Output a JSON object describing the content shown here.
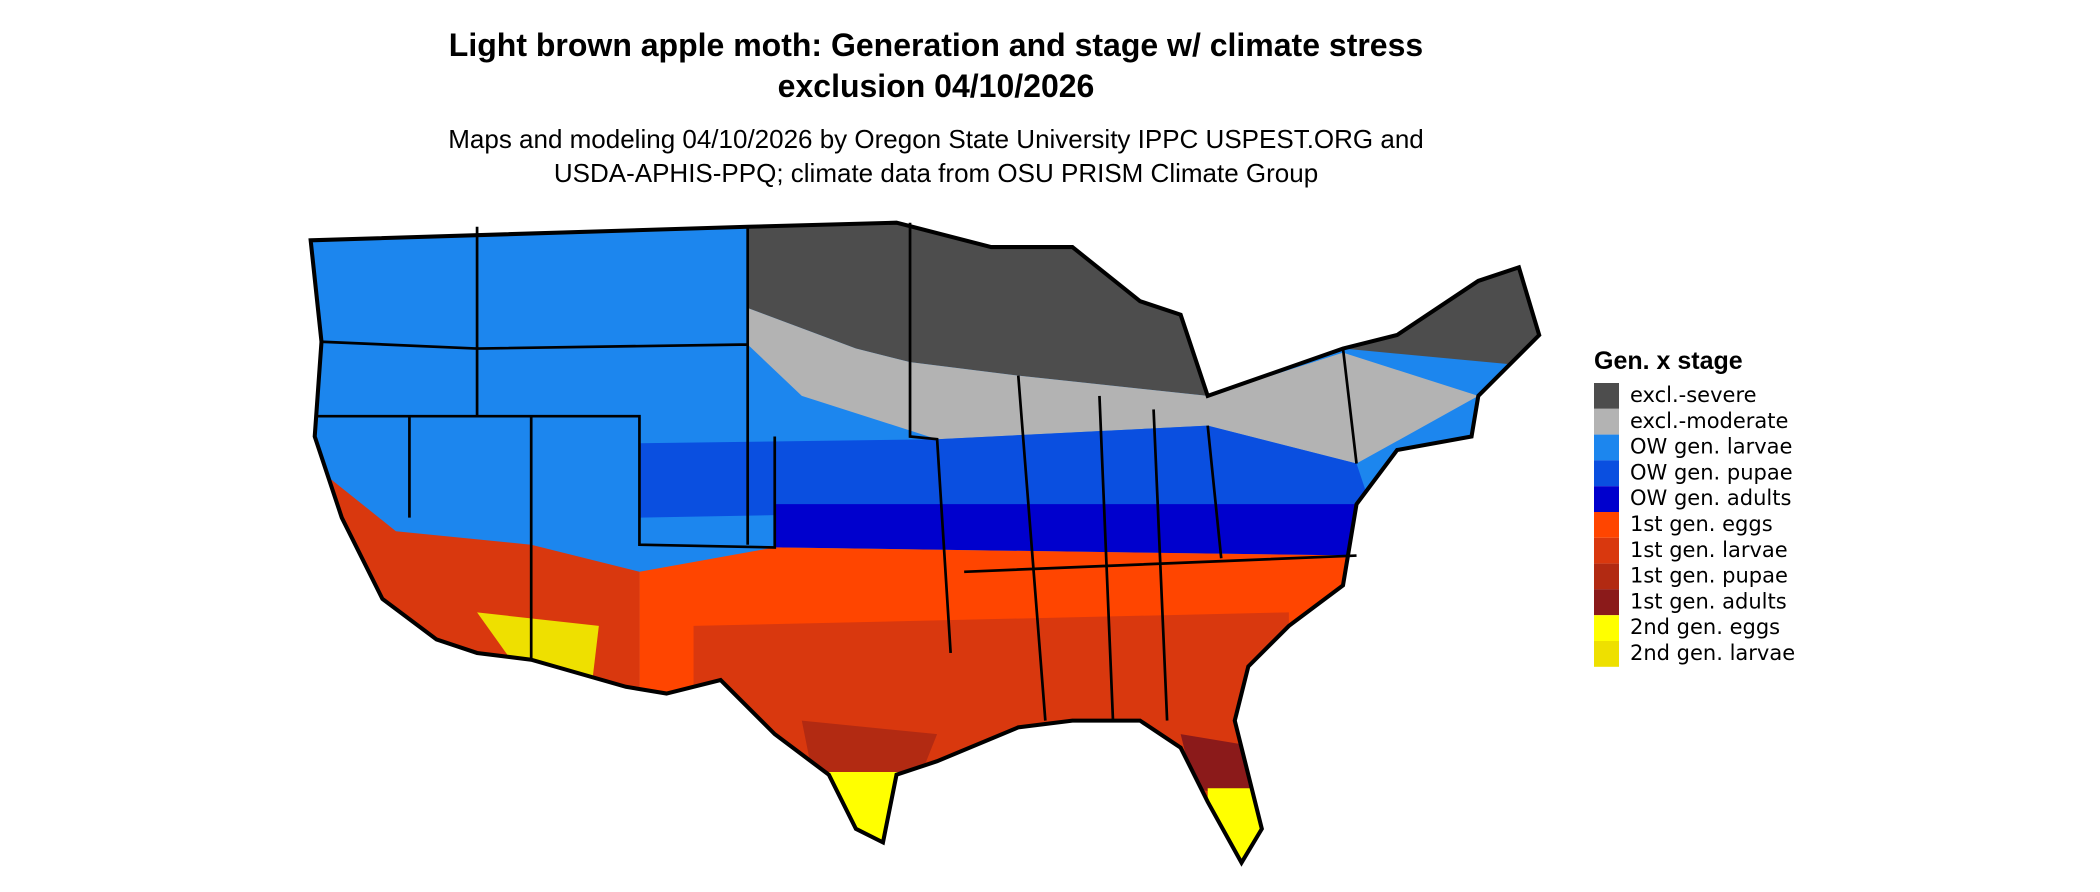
{
  "title": [
    "Light brown apple moth: Generation and stage w/ climate stress",
    "exclusion 04/10/2026"
  ],
  "subtitle": [
    "Maps and modeling 04/10/2026 by Oregon State University IPPC USPEST.ORG and",
    "USDA-APHIS-PPQ; climate data from OSU PRISM Climate Group"
  ],
  "legend": {
    "title": "Gen. x stage",
    "items": [
      {
        "label": "excl.-severe",
        "color": "#4d4d4d"
      },
      {
        "label": "excl.-moderate",
        "color": "#b3b3b3"
      },
      {
        "label": "OW gen. larvae",
        "color": "#1c86ee"
      },
      {
        "label": "OW gen. pupae",
        "color": "#0a4fe0"
      },
      {
        "label": "OW gen. adults",
        "color": "#0000cd"
      },
      {
        "label": "1st gen. eggs",
        "color": "#ff4500"
      },
      {
        "label": "1st gen. larvae",
        "color": "#d9380e"
      },
      {
        "label": "1st gen. pupae",
        "color": "#b22a12"
      },
      {
        "label": "1st gen. adults",
        "color": "#8b1a1a"
      },
      {
        "label": "2nd gen. eggs",
        "color": "#ffff00"
      },
      {
        "label": "2nd gen. larvae",
        "color": "#eee000"
      }
    ]
  }
}
